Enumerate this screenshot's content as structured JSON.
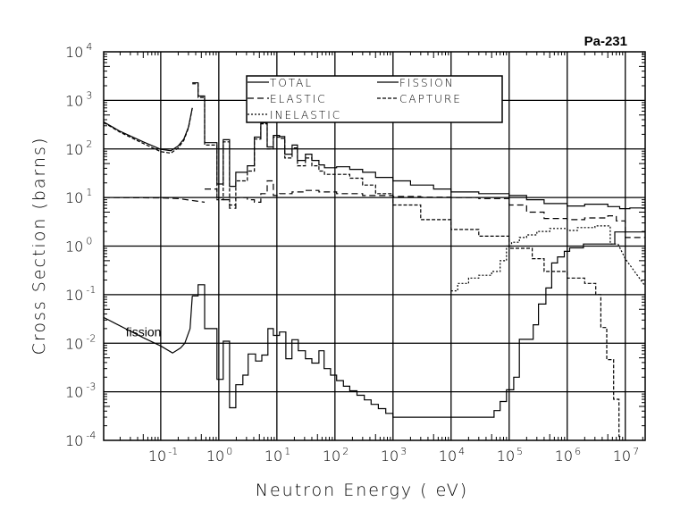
{
  "chart_data": {
    "type": "line",
    "title": "Pa-231",
    "xlabel": "Neutron Energy ( eV)",
    "ylabel": "Cross Section (barns)",
    "xscale": "log",
    "yscale": "log",
    "xlim": [
      0.0104,
      22000000
    ],
    "ylim": [
      0.0001,
      10000
    ],
    "grid": true,
    "legend_position": "top-center",
    "tick_base": "10",
    "xtick_exponents": [
      "-1",
      "0",
      "1",
      "2",
      "3",
      "4",
      "5",
      "6",
      "7"
    ],
    "ytick_exponents": [
      "4",
      "3",
      "2",
      "1",
      "0",
      "-1",
      "-2",
      "-3",
      "-4"
    ],
    "annotations": [
      {
        "text": "fission",
        "x": 0.025,
        "y": 0.014
      }
    ],
    "legend": [
      {
        "label": "TOTAL",
        "style": "solid"
      },
      {
        "label": "FISSION",
        "style": "solid"
      },
      {
        "label": "ELASTIC",
        "style": "long-dash"
      },
      {
        "label": "CAPTURE",
        "style": "dash"
      },
      {
        "label": "INELASTIC",
        "style": "dot"
      }
    ],
    "series": [
      {
        "name": "TOTAL",
        "style": "solid",
        "segments": [
          {
            "type": "curve",
            "points": [
              [
                0.0104,
                360
              ],
              [
                0.02,
                230
              ],
              [
                0.05,
                140
              ],
              [
                0.1,
                98
              ],
              [
                0.15,
                92
              ],
              [
                0.2,
                115
              ],
              [
                0.25,
                160
              ],
              [
                0.3,
                280
              ],
              [
                0.35,
                700
              ]
            ]
          },
          {
            "type": "steps",
            "edges": [
              0.35,
              0.44,
              0.57,
              0.93,
              1.19,
              1.53,
              1.96,
              3.1,
              4.1,
              5.3,
              6.8,
              8.7,
              11.1,
              13.7,
              18.3,
              22.6,
              31,
              40,
              53,
              66,
              107,
              180,
              300,
              500,
              1000,
              2000,
              5000,
              10000,
              30000,
              100000,
              200000,
              400000,
              1000000,
              2000000,
              5000000,
              8000000,
              12000000,
              22000000
            ],
            "values": [
              2300,
              1230,
              135,
              19,
              155,
              17,
              33,
              45,
              175,
              345,
              110,
              190,
              180,
              78,
              120,
              58,
              78,
              58,
              47,
              41,
              43,
              38,
              33,
              26,
              22,
              18,
              15,
              13,
              12,
              11,
              9,
              7.5,
              6.7,
              7.3,
              6.5,
              5.9,
              6.1
            ]
          }
        ]
      },
      {
        "name": "ELASTIC",
        "style": "long-dash",
        "segments": [
          {
            "type": "curve",
            "points": [
              [
                0.0104,
                10
              ],
              [
                0.1,
                9.8
              ],
              [
                0.2,
                9.5
              ],
              [
                0.4,
                8.5
              ],
              [
                0.57,
                8
              ]
            ]
          },
          {
            "type": "steps",
            "edges": [
              0.57,
              0.93,
              1.19,
              1.53,
              1.96,
              3.1,
              4.1,
              5.3,
              6.8,
              8.7,
              11.1,
              18.3,
              31,
              53,
              107,
              300,
              1000,
              3000,
              10000,
              30000,
              100000,
              200000,
              400000,
              1000000,
              2000000,
              5000000,
              7000000,
              10000000,
              22000000
            ],
            "values": [
              15,
              10,
              9,
              6,
              10,
              9,
              8,
              12,
              22,
              11,
              12,
              13,
              14,
              13,
              12,
              11,
              10.5,
              10.2,
              10,
              9.5,
              7,
              5,
              3.7,
              3.5,
              3.8,
              4.2,
              3.3,
              1.5
            ]
          }
        ]
      },
      {
        "name": "CAPTURE",
        "style": "dash",
        "segments": [
          {
            "type": "curve",
            "points": [
              [
                0.0104,
                350
              ],
              [
                0.02,
                220
              ],
              [
                0.05,
                130
              ],
              [
                0.1,
                88
              ],
              [
                0.15,
                82
              ],
              [
                0.2,
                105
              ],
              [
                0.25,
                150
              ],
              [
                0.3,
                270
              ],
              [
                0.35,
                690
              ]
            ]
          },
          {
            "type": "steps",
            "edges": [
              0.35,
              0.44,
              0.57,
              0.93,
              1.19,
              1.53,
              1.96,
              3.1,
              4.1,
              5.3,
              6.8,
              8.7,
              11.1,
              13.7,
              18.3,
              22.6,
              31,
              40,
              53,
              66,
              107,
              180,
              300,
              500,
              1000,
              3000,
              10000,
              30000,
              100000,
              250000,
              400000,
              1000000,
              2000000,
              3100000,
              3800000,
              4800000,
              6300000,
              7800000,
              8500000
            ],
            "values": [
              2200,
              1150,
              120,
              9,
              140,
              7,
              22,
              35,
              160,
              330,
              100,
              175,
              165,
              65,
              105,
              45,
              65,
              45,
              35,
              30,
              30,
              25,
              18,
              12,
              7,
              3.5,
              2.2,
              1.6,
              0.9,
              0.55,
              0.3,
              0.22,
              0.17,
              0.1,
              0.021,
              0.0046,
              0.0007,
              0.00012
            ]
          }
        ]
      },
      {
        "name": "INELASTIC",
        "style": "dot",
        "segments": [
          {
            "type": "steps",
            "edges": [
              10000,
              13000,
              20000,
              30000,
              50000,
              70000,
              90000,
              110000,
              150000,
              200000,
              300000,
              500000,
              1000000,
              1500000,
              3000000,
              5500000,
              7500000
            ],
            "values": [
              0.12,
              0.17,
              0.22,
              0.25,
              0.3,
              0.5,
              1.0,
              1.2,
              1.5,
              1.7,
              2.0,
              2.3,
              2.1,
              2.4,
              2.6,
              1.1
            ]
          },
          {
            "type": "curve",
            "points": [
              [
                7500000,
                1.1
              ],
              [
                10000000,
                0.55
              ],
              [
                22000000,
                0.15
              ]
            ]
          }
        ]
      },
      {
        "name": "FISSION",
        "style": "solid",
        "segments": [
          {
            "type": "curve",
            "points": [
              [
                0.0104,
                0.034
              ],
              [
                0.05,
                0.013
              ],
              [
                0.1,
                0.0088
              ],
              [
                0.16,
                0.0063
              ],
              [
                0.22,
                0.008
              ],
              [
                0.26,
                0.01
              ],
              [
                0.32,
                0.02
              ],
              [
                0.35,
                0.094
              ]
            ]
          },
          {
            "type": "steps",
            "edges": [
              0.35,
              0.44,
              0.57,
              0.93,
              1.19,
              1.53,
              1.96,
              2.6,
              3.2,
              4.3,
              5.5,
              7.0,
              8.7,
              11.1,
              14.3,
              18.2,
              23.4,
              31,
              40,
              53,
              65,
              84,
              107,
              140,
              180,
              240,
              320,
              420,
              560,
              750,
              1000,
              55000,
              70000,
              90000,
              120000,
              150000,
              260000,
              320000,
              430000,
              540000,
              680000,
              890000,
              1100000,
              1900000,
              6600000,
              22000000
            ],
            "values": [
              0.094,
              0.16,
              0.02,
              0.0018,
              0.011,
              0.00047,
              0.0014,
              0.0022,
              0.006,
              0.0043,
              0.0057,
              0.02,
              0.0145,
              0.017,
              0.0048,
              0.0118,
              0.007,
              0.0048,
              0.0039,
              0.007,
              0.003,
              0.0022,
              0.0017,
              0.0013,
              0.00105,
              0.00085,
              0.00068,
              0.00055,
              0.00045,
              0.00036,
              0.0003,
              0.00041,
              0.00063,
              0.0011,
              0.002,
              0.012,
              0.024,
              0.064,
              0.137,
              0.45,
              0.6,
              0.78,
              0.92,
              1.1,
              1.95
            ]
          }
        ]
      }
    ]
  }
}
